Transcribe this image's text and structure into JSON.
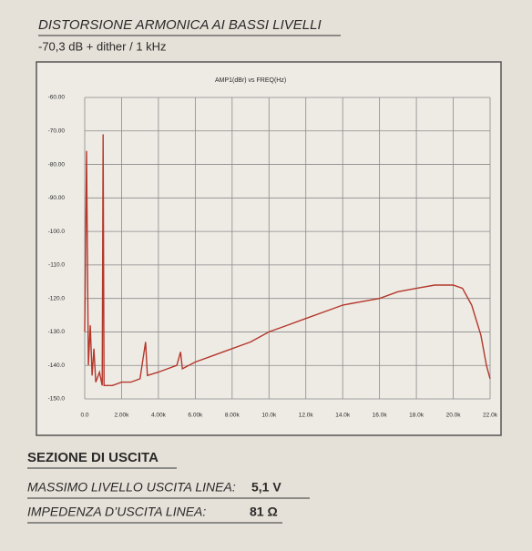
{
  "header": {
    "title": "DISTORSIONE ARMONICA AI BASSI LIVELLI",
    "subtitle": "-70,3 dB + dither / 1 kHz"
  },
  "chart_data": {
    "type": "line",
    "title": "AMP1(dBr)   vs   FREQ(Hz)",
    "x": [
      0,
      100,
      200,
      300,
      400,
      500,
      600,
      800,
      950,
      1000,
      1050,
      1500,
      2000,
      2500,
      3000,
      3300,
      3400,
      4000,
      4500,
      5000,
      5200,
      5300,
      6000,
      7000,
      8000,
      9000,
      10000,
      11000,
      12000,
      13000,
      14000,
      15000,
      16000,
      17000,
      18000,
      19000,
      20000,
      20500,
      21000,
      21500,
      21800,
      22000
    ],
    "series": [
      {
        "color": "#b4372b",
        "values": [
          -130,
          -76,
          -140,
          -128,
          -143,
          -135,
          -145,
          -142,
          -146,
          -71,
          -146,
          -146,
          -145,
          -145,
          -144,
          -133,
          -143,
          -142,
          -141,
          -140,
          -136,
          -141,
          -139,
          -137,
          -135,
          -133,
          -130,
          -128,
          -126,
          -124,
          -122,
          -121,
          -120,
          -118,
          -117,
          -116,
          -116,
          -117,
          -122,
          -131,
          -140,
          -144
        ]
      }
    ],
    "xlim": [
      0,
      22000
    ],
    "xticks": [
      {
        "value": 0,
        "label": "0.0"
      },
      {
        "value": 2000,
        "label": "2.00k"
      },
      {
        "value": 4000,
        "label": "4.00k"
      },
      {
        "value": 6000,
        "label": "6.00k"
      },
      {
        "value": 8000,
        "label": "8.00k"
      },
      {
        "value": 10000,
        "label": "10.0k"
      },
      {
        "value": 12000,
        "label": "12.0k"
      },
      {
        "value": 14000,
        "label": "14.0k"
      },
      {
        "value": 16000,
        "label": "16.0k"
      },
      {
        "value": 18000,
        "label": "18.0k"
      },
      {
        "value": 20000,
        "label": "20.0k"
      },
      {
        "value": 22000,
        "label": "22.0k"
      }
    ],
    "ylim": [
      -150,
      -60
    ],
    "yticks": [
      {
        "value": -60,
        "label": "-60.00"
      },
      {
        "value": -70,
        "label": "-70.00"
      },
      {
        "value": -80,
        "label": "-80.00"
      },
      {
        "value": -90,
        "label": "-90.00"
      },
      {
        "value": -100,
        "label": "-100.0"
      },
      {
        "value": -110,
        "label": "-110.0"
      },
      {
        "value": -120,
        "label": "-120.0"
      },
      {
        "value": -130,
        "label": "-130.0"
      },
      {
        "value": -140,
        "label": "-140.0"
      },
      {
        "value": -150,
        "label": "-150.0"
      }
    ],
    "grid": true
  },
  "section": {
    "title": "SEZIONE DI USCITA",
    "rows": [
      {
        "label": "MASSIMO LIVELLO USCITA LINEA:",
        "value": "5,1 V"
      },
      {
        "label": "IMPEDENZA D’USCITA LINEA:",
        "value": "81 Ω"
      }
    ]
  }
}
